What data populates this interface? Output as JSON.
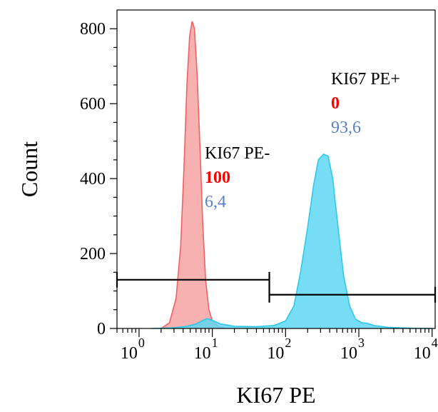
{
  "chart_data": {
    "type": "area",
    "title": "",
    "xlabel": "KI67 PE",
    "ylabel": "Count",
    "x_scale": "log",
    "xlim": [
      0.5,
      11000
    ],
    "ylim": [
      0,
      850
    ],
    "x_ticks": [
      {
        "value": 1,
        "base": "10",
        "exp": "0"
      },
      {
        "value": 10,
        "base": "10",
        "exp": "1"
      },
      {
        "value": 100,
        "base": "10",
        "exp": "2"
      },
      {
        "value": 1000,
        "base": "10",
        "exp": "3"
      },
      {
        "value": 10000,
        "base": "10",
        "exp": "4"
      }
    ],
    "y_ticks": [
      0,
      200,
      400,
      600,
      800
    ],
    "series": [
      {
        "color": "#f26161",
        "fill": "#f7a3a3",
        "points": [
          [
            2,
            0
          ],
          [
            2.6,
            15
          ],
          [
            3.2,
            80
          ],
          [
            3.7,
            220
          ],
          [
            4.1,
            430
          ],
          [
            4.5,
            650
          ],
          [
            4.9,
            780
          ],
          [
            5.3,
            820
          ],
          [
            5.7,
            800
          ],
          [
            6.2,
            680
          ],
          [
            6.8,
            480
          ],
          [
            7.4,
            280
          ],
          [
            8.1,
            130
          ],
          [
            9.0,
            50
          ],
          [
            10,
            20
          ],
          [
            12,
            5
          ],
          [
            15,
            0
          ]
        ]
      },
      {
        "color": "#2ec8ea",
        "fill": "#5fd7f2",
        "points": [
          [
            1.5,
            0
          ],
          [
            3,
            2
          ],
          [
            4.5,
            6
          ],
          [
            6,
            12
          ],
          [
            7.5,
            22
          ],
          [
            8.5,
            26
          ],
          [
            10,
            22
          ],
          [
            13,
            12
          ],
          [
            20,
            6
          ],
          [
            40,
            5
          ],
          [
            70,
            8
          ],
          [
            100,
            20
          ],
          [
            130,
            60
          ],
          [
            160,
            150
          ],
          [
            200,
            270
          ],
          [
            240,
            380
          ],
          [
            280,
            450
          ],
          [
            330,
            465
          ],
          [
            380,
            460
          ],
          [
            440,
            400
          ],
          [
            520,
            270
          ],
          [
            620,
            140
          ],
          [
            750,
            60
          ],
          [
            900,
            25
          ],
          [
            1100,
            15
          ],
          [
            1300,
            14
          ],
          [
            1600,
            8
          ],
          [
            2500,
            3
          ],
          [
            5000,
            1
          ],
          [
            10000,
            0
          ]
        ]
      }
    ],
    "gates": [
      {
        "name": "KI67 PE-",
        "x_range": [
          0.5,
          60
        ],
        "y": 130,
        "stat_red": "100",
        "stat_blue": "6,4"
      },
      {
        "name": "KI67 PE+",
        "x_range": [
          60,
          11000
        ],
        "y": 90,
        "stat_red": "0",
        "stat_blue": "93,6"
      }
    ],
    "stat_colors": {
      "red": "#ff0000",
      "blue": "#5b7fc7"
    },
    "grid": false
  }
}
